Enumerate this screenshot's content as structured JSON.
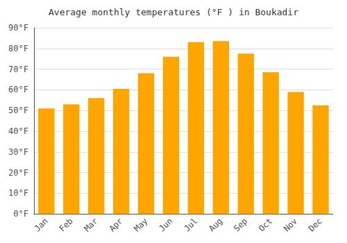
{
  "chart_data": {
    "type": "bar",
    "title": "Average monthly temperatures (°F ) in Boukadir",
    "categories": [
      "Jan",
      "Feb",
      "Mar",
      "Apr",
      "May",
      "Jun",
      "Jul",
      "Aug",
      "Sep",
      "Oct",
      "Nov",
      "Dec"
    ],
    "values": [
      51,
      53,
      56,
      60.5,
      68,
      76,
      83,
      83.5,
      77.5,
      68.5,
      59,
      52.5
    ],
    "color": "#FFA500",
    "ylim": [
      0,
      90
    ],
    "yticks": [
      {
        "value": 0,
        "label": "0°F"
      },
      {
        "value": 10,
        "label": "10°F"
      },
      {
        "value": 20,
        "label": "20°F"
      },
      {
        "value": 30,
        "label": "30°F"
      },
      {
        "value": 40,
        "label": "40°F"
      },
      {
        "value": 50,
        "label": "50°F"
      },
      {
        "value": 60,
        "label": "60°F"
      },
      {
        "value": 70,
        "label": "70°F"
      },
      {
        "value": 80,
        "label": "80°F"
      },
      {
        "value": 90,
        "label": "90°F"
      }
    ],
    "grid": true
  }
}
